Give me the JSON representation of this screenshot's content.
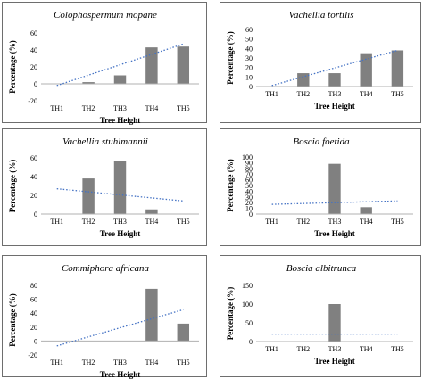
{
  "chart_data": [
    {
      "type": "bar",
      "title": "Colophospermum mopane",
      "xlabel": "Tree Height",
      "ylabel": "Percentage (%)",
      "categories": [
        "TH1",
        "TH2",
        "TH3",
        "TH4",
        "TH5"
      ],
      "values": [
        0,
        2,
        10,
        43,
        44
      ],
      "ylim": [
        -20,
        60
      ],
      "yticks": [
        -20,
        0,
        20,
        40,
        60
      ],
      "trendline": {
        "start": -2,
        "end": 47,
        "color": "#4472c4",
        "style": "dotted"
      },
      "bar_color": "#808080"
    },
    {
      "type": "bar",
      "title": "Vachellia tortilis",
      "xlabel": "Tree Height",
      "ylabel": "Percentage (%)",
      "categories": [
        "TH1",
        "TH2",
        "TH3",
        "TH4",
        "TH5"
      ],
      "values": [
        0,
        14,
        14,
        35,
        38
      ],
      "ylim": [
        0,
        60
      ],
      "yticks": [
        0,
        10,
        20,
        30,
        40,
        50,
        60
      ],
      "trendline": {
        "start": 1,
        "end": 38,
        "color": "#4472c4",
        "style": "dotted"
      },
      "bar_color": "#808080"
    },
    {
      "type": "bar",
      "title": "Vachellia stuhlmannii",
      "xlabel": "Tree Height",
      "ylabel": "Percentage (%)",
      "categories": [
        "TH1",
        "TH2",
        "TH3",
        "TH4",
        "TH5"
      ],
      "values": [
        0,
        38,
        57,
        5,
        0
      ],
      "ylim": [
        0,
        60
      ],
      "yticks": [
        0,
        20,
        40,
        60
      ],
      "trendline": {
        "start": 27,
        "end": 14,
        "color": "#4472c4",
        "style": "dotted"
      },
      "bar_color": "#808080"
    },
    {
      "type": "bar",
      "title": "Boscia foetida",
      "xlabel": "Tree Height",
      "ylabel": "Percentage (%)",
      "categories": [
        "TH1",
        "TH2",
        "TH3",
        "TH4",
        "TH5"
      ],
      "values": [
        0,
        0,
        88,
        12,
        0
      ],
      "ylim": [
        0,
        100
      ],
      "yticks": [
        0,
        10,
        20,
        30,
        40,
        50,
        60,
        70,
        80,
        90,
        100
      ],
      "trendline": {
        "start": 17,
        "end": 23,
        "color": "#4472c4",
        "style": "dotted"
      },
      "bar_color": "#808080"
    },
    {
      "type": "bar",
      "title": "Commiphora africana",
      "xlabel": "Tree Height",
      "ylabel": "Percentage (%)",
      "categories": [
        "TH1",
        "TH2",
        "TH3",
        "TH4",
        "TH5"
      ],
      "values": [
        0,
        0,
        0,
        75,
        25
      ],
      "ylim": [
        -20,
        80
      ],
      "yticks": [
        -20,
        0,
        20,
        40,
        60,
        80
      ],
      "trendline": {
        "start": -7,
        "end": 45,
        "color": "#4472c4",
        "style": "dotted"
      },
      "bar_color": "#808080"
    },
    {
      "type": "bar",
      "title": "Boscia albitrunca",
      "xlabel": "Tree Height",
      "ylabel": "Percentage (%)",
      "categories": [
        "TH1",
        "TH2",
        "TH3",
        "TH4",
        "TH5"
      ],
      "values": [
        0,
        0,
        100,
        0,
        0
      ],
      "ylim": [
        0,
        150
      ],
      "yticks": [
        0,
        50,
        100,
        150
      ],
      "trendline": {
        "start": 20,
        "end": 20,
        "color": "#4472c4",
        "style": "dotted"
      },
      "bar_color": "#808080"
    }
  ]
}
